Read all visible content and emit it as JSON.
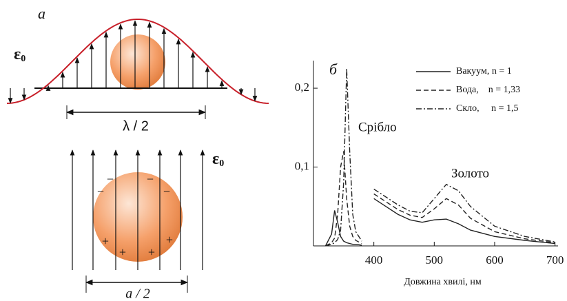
{
  "diagram": {
    "panel_label": "а",
    "field_symbol": "ε",
    "field_subscript": "0",
    "wavelength_label": "λ / 2",
    "size_label": "a / 2",
    "minus": "−",
    "plus": "+"
  },
  "chart_data": {
    "type": "line",
    "panel_label": "б",
    "xlabel": "Довжина хвилі, нм",
    "annotations": [
      "Срібло",
      "Золото"
    ],
    "x": [
      320,
      330,
      335,
      340,
      345,
      350,
      355,
      360,
      365,
      370,
      380,
      390,
      400,
      420,
      440,
      460,
      480,
      500,
      520,
      540,
      560,
      600,
      650,
      700
    ],
    "series": [
      {
        "name": "Вакуум, n = 1",
        "color": "#222222",
        "line_style": "solid",
        "values": [
          0,
          0.015,
          0.045,
          0.03,
          0.012,
          0.006,
          0.004,
          0.003,
          0.002,
          0.002,
          0.001,
          null,
          0.06,
          0.05,
          0.04,
          0.033,
          0.03,
          0.033,
          0.034,
          0.028,
          0.02,
          0.012,
          0.007,
          0.003
        ]
      },
      {
        "name": "Вода,    n = 1,33",
        "color": "#222222",
        "line_style": "dashed",
        "values": [
          0,
          0.004,
          0.01,
          0.04,
          0.1,
          0.12,
          0.06,
          0.025,
          0.012,
          0.007,
          0.003,
          null,
          0.066,
          0.056,
          0.046,
          0.039,
          0.036,
          0.047,
          0.06,
          0.052,
          0.035,
          0.018,
          0.009,
          0.004
        ]
      },
      {
        "name": "Скло,     n = 1,5",
        "color": "#222222",
        "line_style": "dashdot",
        "values": [
          0,
          0.002,
          0.004,
          0.008,
          0.02,
          0.08,
          0.225,
          0.12,
          0.04,
          0.018,
          0.006,
          null,
          0.072,
          0.062,
          0.052,
          0.044,
          0.042,
          0.06,
          0.078,
          0.07,
          0.05,
          0.025,
          0.012,
          0.005
        ]
      }
    ],
    "xlim": [
      300,
      705
    ],
    "xticks": [
      400,
      500,
      600,
      700
    ],
    "ylim": [
      0,
      0.235
    ],
    "yticks": [
      {
        "value": 0.1,
        "label": "0,1"
      },
      {
        "value": 0.2,
        "label": "0,2"
      }
    ],
    "grid": false
  }
}
